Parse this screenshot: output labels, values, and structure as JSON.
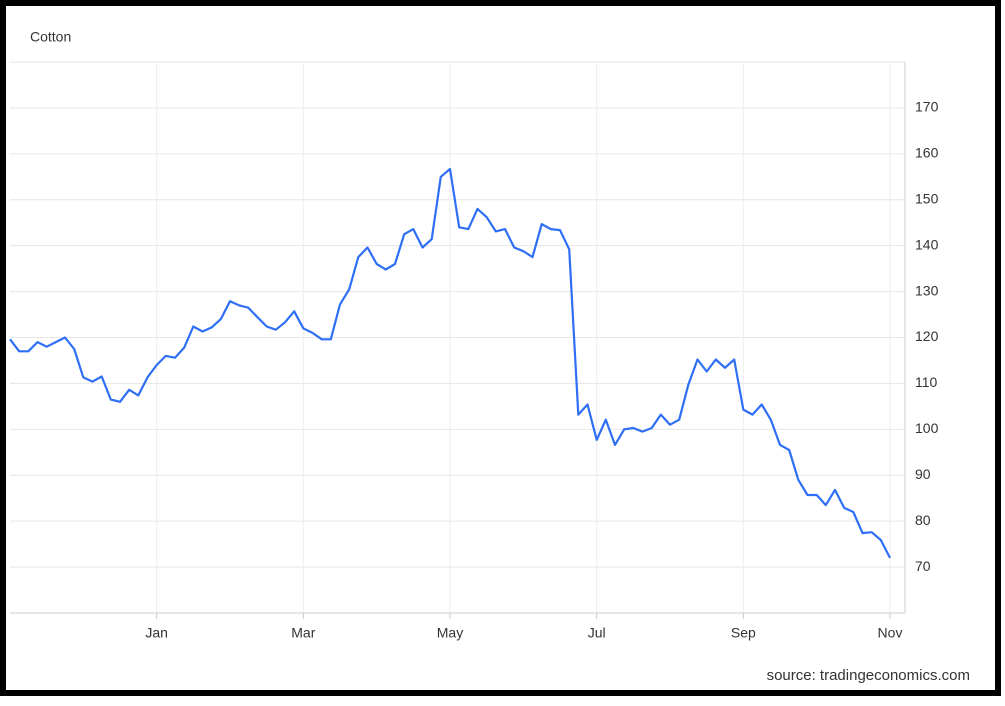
{
  "chart_data": {
    "type": "line",
    "title": "Cotton",
    "source": "source: tradingeconomics.com",
    "categories": [
      null,
      null,
      null,
      null,
      null,
      null,
      null,
      null,
      null,
      null,
      null,
      null,
      null,
      null,
      null,
      null,
      "Jan",
      null,
      null,
      null,
      null,
      null,
      null,
      null,
      null,
      null,
      null,
      null,
      null,
      null,
      null,
      null,
      "Mar",
      null,
      null,
      null,
      null,
      null,
      null,
      null,
      null,
      null,
      null,
      null,
      null,
      null,
      null,
      null,
      "May",
      null,
      null,
      null,
      null,
      null,
      null,
      null,
      null,
      null,
      null,
      null,
      null,
      null,
      null,
      null,
      "Jul",
      null,
      null,
      null,
      null,
      null,
      null,
      null,
      null,
      null,
      null,
      null,
      null,
      null,
      null,
      null,
      "Sep",
      null,
      null,
      null,
      null,
      null,
      null,
      null,
      null,
      null,
      null,
      null,
      null,
      null,
      null,
      null,
      "Nov"
    ],
    "series": [
      {
        "name": "Cotton",
        "color": "#2f6ff5",
        "values": [
          119.6,
          117,
          117,
          119,
          118,
          119,
          120,
          117.5,
          111.3,
          110.4,
          111.5,
          106.5,
          106,
          108.6,
          107.4,
          111.3,
          114,
          116,
          115.6,
          117.8,
          122.4,
          121.3,
          122.2,
          124,
          127.9,
          127,
          126.5,
          124.4,
          122.4,
          121.7,
          123.3,
          125.7,
          122,
          121,
          119.6,
          119.6,
          127.2,
          130.5,
          137.5,
          139.6,
          136,
          134.8,
          136,
          142.5,
          143.6,
          139.6,
          141.4,
          155,
          156.7,
          144,
          143.6,
          148,
          146.2,
          143.1,
          143.6,
          139.6,
          138.8,
          137.5,
          144.7,
          143.6,
          143.4,
          139.2,
          103.2,
          105.4,
          97.7,
          102.1,
          96.6,
          100,
          100.3,
          99.5,
          100.3,
          103.2,
          101,
          102.1,
          109.7,
          115.2,
          112.6,
          115.2,
          113.4,
          115.2,
          104.3,
          103.2,
          105.4,
          102.1,
          96.6,
          95.5,
          89,
          85.7,
          85.7,
          83.5,
          86.8,
          82.9,
          82,
          77.4,
          77.6,
          75.9,
          72
        ]
      }
    ],
    "ylim": [
      60,
      180
    ],
    "yticks": [
      70,
      80,
      90,
      100,
      110,
      120,
      130,
      140,
      150,
      160,
      170
    ],
    "grid": true
  }
}
